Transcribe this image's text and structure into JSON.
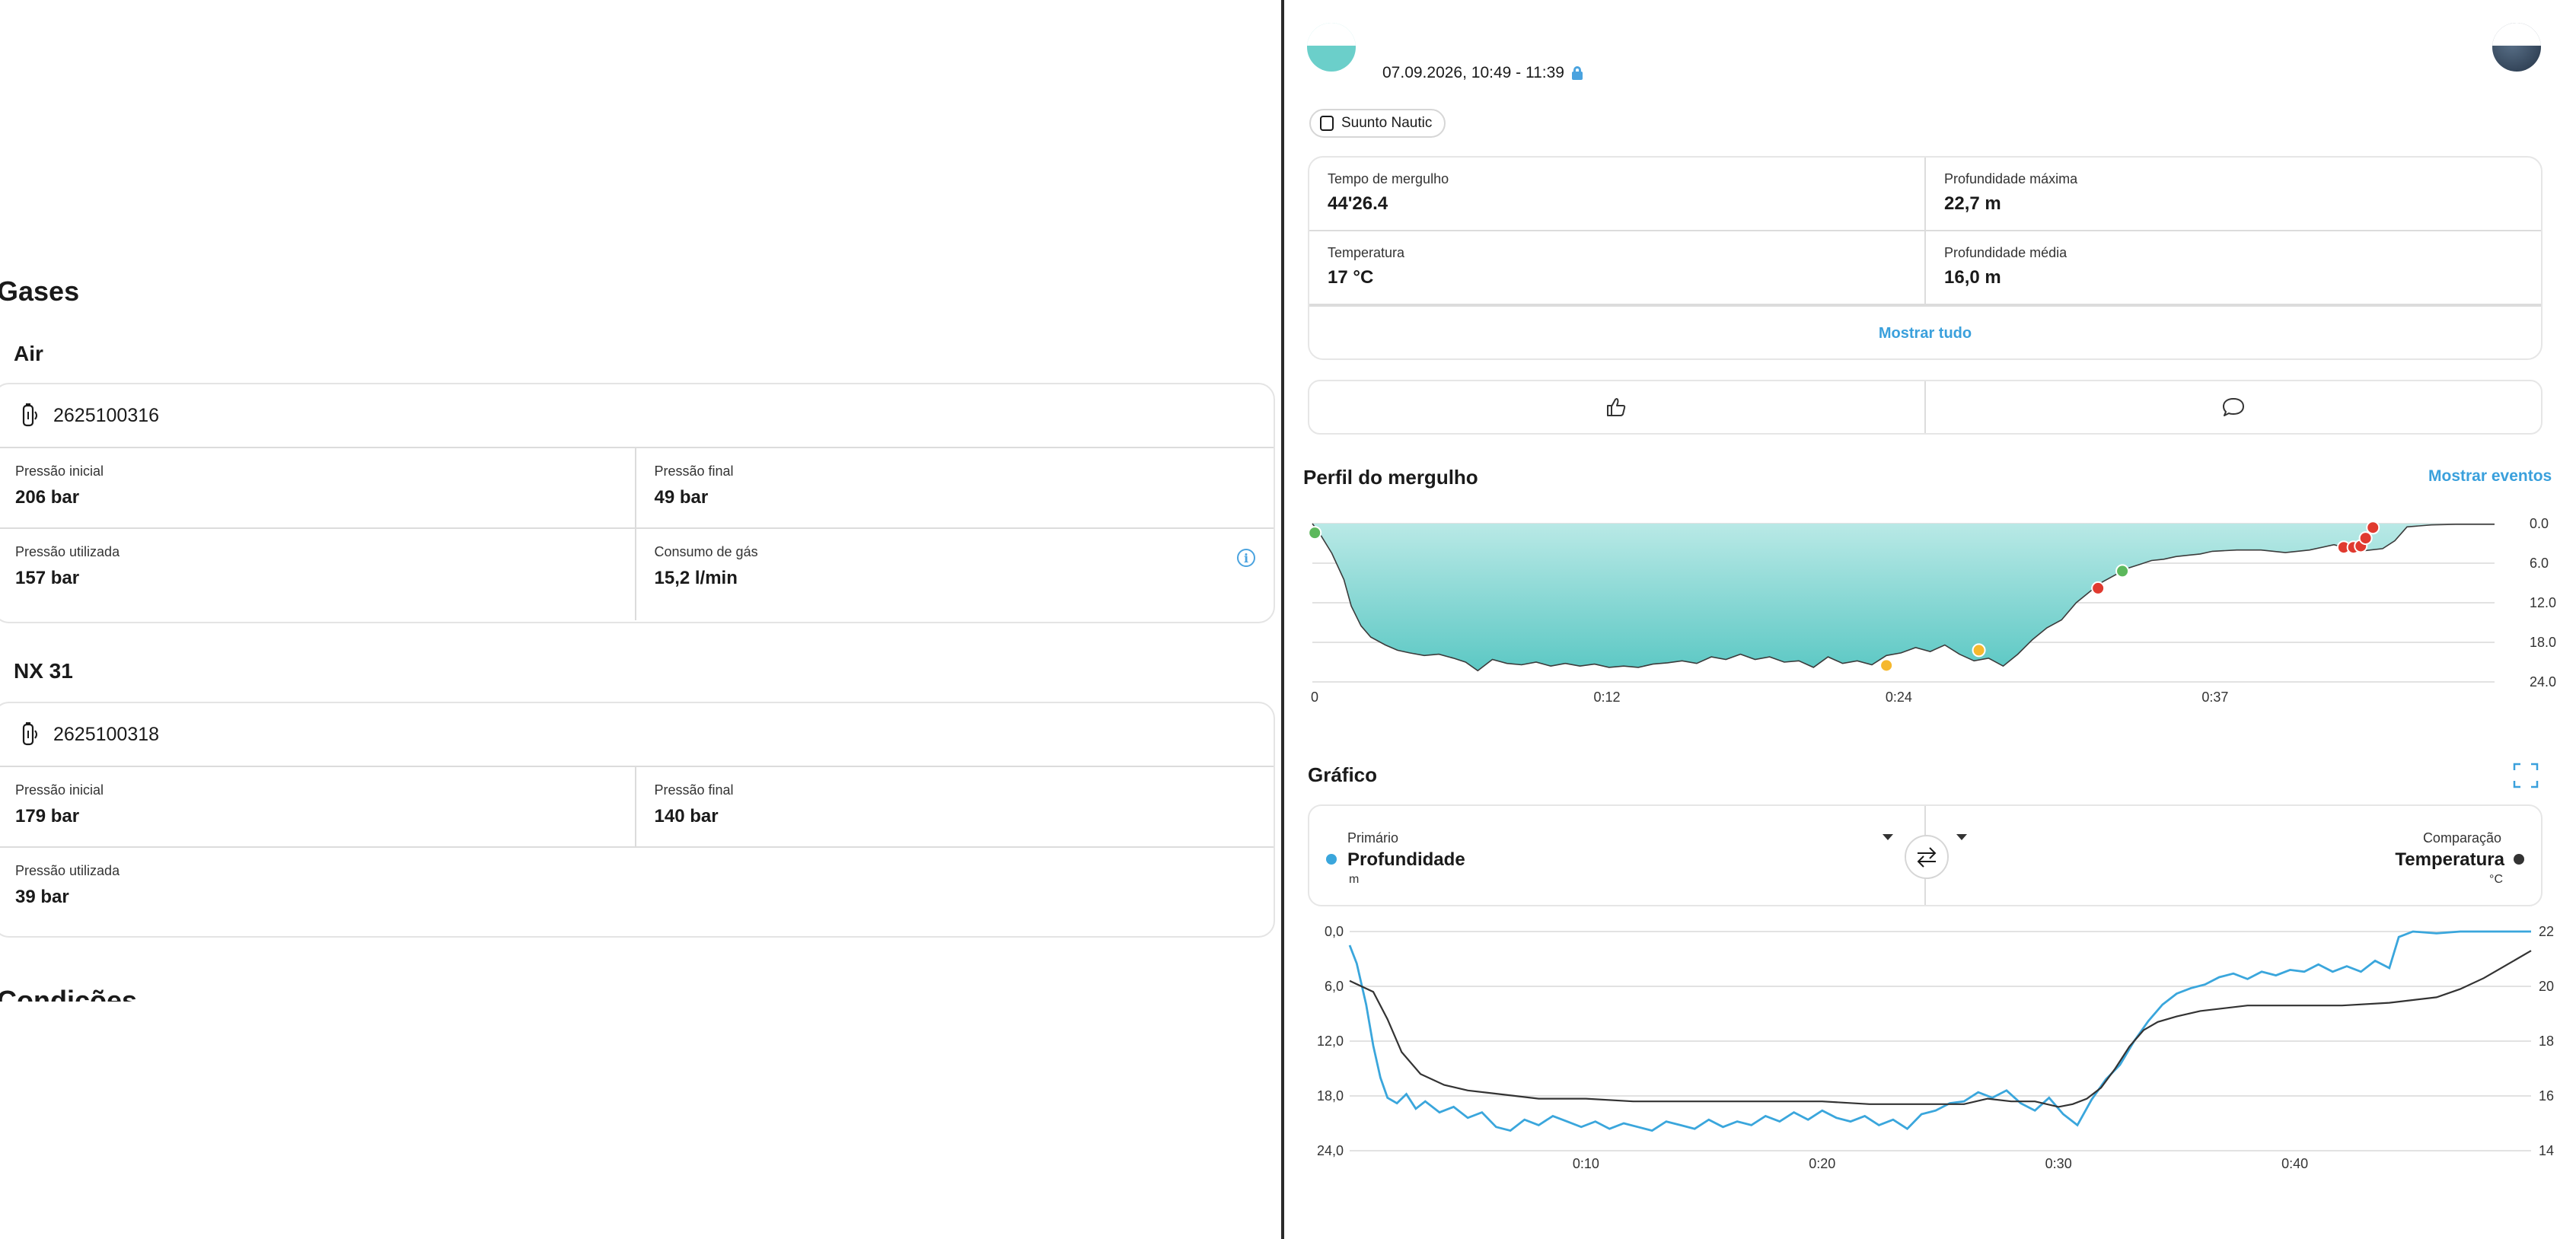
{
  "left": {
    "gases_title": "Gases",
    "conditions_title": "Condições",
    "gases": [
      {
        "name": "Air",
        "tank_id": "2625100316",
        "rows": [
          [
            {
              "label": "Pressão inicial",
              "value": "206 bar"
            },
            {
              "label": "Pressão final",
              "value": "49 bar"
            }
          ],
          [
            {
              "label": "Pressão utilizada",
              "value": "157 bar"
            },
            {
              "label": "Consumo de gás",
              "value": "15,2 l/min",
              "info_icon": "info-icon"
            }
          ]
        ]
      },
      {
        "name": "NX 31",
        "tank_id": "2625100318",
        "rows": [
          [
            {
              "label": "Pressão inicial",
              "value": "179 bar"
            },
            {
              "label": "Pressão final",
              "value": "140 bar"
            }
          ],
          [
            {
              "label": "Pressão utilizada",
              "value": "39 bar"
            }
          ]
        ]
      }
    ]
  },
  "right": {
    "datetime": "07.09.2026, 10:49 - 11:39",
    "device": "Suunto Nautic",
    "summary": [
      [
        {
          "label": "Tempo de mergulho",
          "value": "44'26.4"
        },
        {
          "label": "Profundidade máxima",
          "value": "22,7 m"
        }
      ],
      [
        {
          "label": "Temperatura",
          "value": "17 °C"
        },
        {
          "label": "Profundidade média",
          "value": "16,0 m"
        }
      ]
    ],
    "show_all": "Mostrar tudo",
    "actions": {
      "like_icon": "thumbs-up-icon",
      "comment_icon": "comment-icon"
    },
    "profile": {
      "title": "Perfil do mergulho",
      "show_events": "Mostrar eventos",
      "fill_color": "#5cc8c4"
    },
    "graph": {
      "title": "Gráfico",
      "primary_label": "Primário",
      "primary_value": "Profundidade",
      "primary_unit": "m",
      "primary_color": "#3aa6dc",
      "comparison_label": "Comparação",
      "comparison_value": "Temperatura",
      "comparison_unit": "°C",
      "comparison_color": "#333333"
    }
  },
  "chart_data": [
    {
      "type": "area",
      "name": "dive-profile",
      "x_unit": "min",
      "x_ticks": [
        "0",
        "0:12",
        "0:24",
        "0:37"
      ],
      "y_ticks": [
        "0.0",
        "6.0",
        "12.0",
        "18.0",
        "24.0"
      ],
      "ylim": [
        0,
        24
      ],
      "xlim": [
        0,
        48.6
      ],
      "y_inverted": true,
      "depth_x": [
        0,
        0.3,
        0.8,
        1.3,
        1.6,
        2.0,
        2.4,
        3.0,
        3.5,
        4.0,
        4.6,
        5.2,
        5.8,
        6.3,
        6.8,
        7.4,
        8.0,
        8.6,
        9.2,
        9.8,
        10.4,
        11.0,
        11.6,
        12.2,
        12.8,
        13.4,
        14.0,
        14.6,
        15.2,
        15.8,
        16.4,
        17.0,
        17.6,
        18.2,
        18.8,
        19.4,
        20.0,
        20.6,
        21.2,
        21.8,
        22.4,
        23.0,
        23.6,
        24.2,
        24.8,
        25.4,
        26.0,
        26.6,
        27.2,
        27.8,
        28.4,
        29.0,
        29.6,
        30.2,
        30.8,
        31.4,
        32.0,
        32.5,
        33.0,
        33.5,
        34.0,
        34.5,
        35.0,
        35.5,
        36.0,
        36.5,
        37.0,
        38.0,
        39.0,
        40.0,
        41.0,
        42.0,
        43.0,
        44.0,
        44.5,
        45.0,
        46.0,
        47.0,
        48.6
      ],
      "depth_y": [
        0,
        1.5,
        4.5,
        8.5,
        12.5,
        15.5,
        17.2,
        18.4,
        19.2,
        19.6,
        20.0,
        19.8,
        20.4,
        21.0,
        22.3,
        20.6,
        21.2,
        21.4,
        21.0,
        21.6,
        21.2,
        21.6,
        21.3,
        21.8,
        21.6,
        21.8,
        21.3,
        21.1,
        20.8,
        21.2,
        20.2,
        20.6,
        19.8,
        20.6,
        20.2,
        21.0,
        20.8,
        21.8,
        20.2,
        21.2,
        20.8,
        21.4,
        20.0,
        19.6,
        18.8,
        19.4,
        18.4,
        19.8,
        20.8,
        20.4,
        21.6,
        19.8,
        17.6,
        15.8,
        14.6,
        12.0,
        10.2,
        8.8,
        7.8,
        6.8,
        6.2,
        5.6,
        5.4,
        5.0,
        4.8,
        4.6,
        4.2,
        4.0,
        4.0,
        4.4,
        4.0,
        3.2,
        4.2,
        3.8,
        2.6,
        0.5,
        0.2,
        0.1,
        0.1
      ],
      "events": [
        {
          "t": 0.1,
          "depth": 1.4,
          "color": "#5cb85c"
        },
        {
          "t": 23.6,
          "depth": 21.5,
          "color": "#f5b82e"
        },
        {
          "t": 27.4,
          "depth": 19.2,
          "color": "#f5b82e"
        },
        {
          "t": 33.3,
          "depth": 7.2,
          "color": "#5cb85c"
        },
        {
          "t": 32.3,
          "depth": 9.8,
          "color": "#e03a2f"
        },
        {
          "t": 42.4,
          "depth": 3.6,
          "color": "#e03a2f"
        },
        {
          "t": 42.8,
          "depth": 3.6,
          "color": "#e03a2f"
        },
        {
          "t": 43.1,
          "depth": 3.4,
          "color": "#e03a2f"
        },
        {
          "t": 43.3,
          "depth": 2.2,
          "color": "#e03a2f"
        },
        {
          "t": 43.6,
          "depth": 0.6,
          "color": "#e03a2f"
        }
      ]
    },
    {
      "type": "line",
      "name": "depth-temperature-graph",
      "x_unit": "min",
      "x_ticks": [
        "0:10",
        "0:20",
        "0:30",
        "0:40"
      ],
      "x_tick_values": [
        10,
        20,
        30,
        40
      ],
      "xlim": [
        0,
        50
      ],
      "y_left_ticks": [
        "0,0",
        "6,0",
        "12,0",
        "18,0",
        "24,0"
      ],
      "ylim_left": [
        0,
        24
      ],
      "y_left_inverted": true,
      "y_right_ticks": [
        "22",
        "20",
        "18",
        "16",
        "14"
      ],
      "ylim_right": [
        14,
        22
      ],
      "series": [
        {
          "name": "Profundidade",
          "axis": "left",
          "color": "#3aa6dc",
          "x": [
            0,
            0.3,
            0.7,
            1.0,
            1.3,
            1.6,
            2.0,
            2.4,
            2.8,
            3.2,
            3.8,
            4.4,
            5.0,
            5.6,
            6.2,
            6.8,
            7.4,
            8.0,
            8.6,
            9.2,
            9.8,
            10.4,
            11.0,
            11.6,
            12.2,
            12.8,
            13.4,
            14.0,
            14.6,
            15.2,
            15.8,
            16.4,
            17.0,
            17.6,
            18.2,
            18.8,
            19.4,
            20.0,
            20.6,
            21.2,
            21.8,
            22.4,
            23.0,
            23.6,
            24.2,
            24.8,
            25.4,
            26.0,
            26.6,
            27.2,
            27.8,
            28.4,
            29.0,
            29.6,
            30.2,
            30.8,
            31.4,
            32.0,
            32.6,
            33.2,
            33.8,
            34.4,
            35.0,
            35.6,
            36.2,
            36.8,
            37.4,
            38.0,
            38.6,
            39.2,
            39.8,
            40.4,
            41.0,
            41.6,
            42.2,
            42.8,
            43.4,
            44.0,
            44.4,
            45.0,
            46.0,
            47.0,
            48.0,
            49.0,
            50.0
          ],
          "y": [
            1.5,
            3.5,
            8.0,
            12.5,
            16.0,
            18.2,
            18.8,
            17.8,
            19.4,
            18.6,
            19.8,
            19.2,
            20.4,
            19.8,
            21.4,
            21.8,
            20.6,
            21.2,
            20.2,
            20.8,
            21.4,
            20.8,
            21.6,
            21.0,
            21.4,
            21.8,
            20.8,
            21.2,
            21.6,
            20.6,
            21.4,
            20.8,
            21.2,
            20.2,
            20.8,
            19.8,
            20.6,
            19.6,
            20.4,
            20.8,
            20.2,
            21.2,
            20.6,
            21.6,
            20.0,
            19.6,
            18.8,
            18.6,
            17.6,
            18.2,
            17.4,
            18.8,
            19.6,
            18.2,
            20.0,
            21.2,
            18.4,
            16.2,
            14.6,
            12.0,
            9.8,
            8.0,
            6.8,
            6.2,
            5.8,
            5.0,
            4.6,
            5.2,
            4.4,
            4.8,
            4.2,
            4.4,
            3.6,
            4.4,
            3.8,
            4.4,
            3.2,
            4.0,
            0.6,
            0.0,
            0.2,
            0.0,
            0.0,
            0.0,
            0.0
          ]
        },
        {
          "name": "Temperatura",
          "axis": "right",
          "color": "#333333",
          "x": [
            0,
            1.0,
            1.6,
            2.2,
            3.0,
            4.0,
            5.0,
            6.0,
            7.0,
            8.0,
            10.0,
            12.0,
            15.0,
            18.0,
            20.0,
            22.0,
            24.0,
            26.0,
            27.0,
            28.0,
            29.0,
            30.0,
            30.6,
            31.2,
            31.8,
            32.4,
            33.0,
            33.6,
            34.2,
            35.0,
            36.0,
            37.0,
            38.0,
            40.0,
            42.0,
            44.0,
            45.0,
            46.0,
            47.0,
            48.0,
            49.0,
            50.0
          ],
          "y": [
            20.2,
            19.8,
            18.8,
            17.6,
            16.8,
            16.4,
            16.2,
            16.1,
            16.0,
            15.9,
            15.9,
            15.8,
            15.8,
            15.8,
            15.8,
            15.7,
            15.7,
            15.7,
            15.9,
            15.8,
            15.8,
            15.6,
            15.7,
            15.9,
            16.3,
            17.0,
            17.8,
            18.4,
            18.7,
            18.9,
            19.1,
            19.2,
            19.3,
            19.3,
            19.3,
            19.4,
            19.5,
            19.6,
            19.9,
            20.3,
            20.8,
            21.3
          ]
        }
      ]
    }
  ]
}
